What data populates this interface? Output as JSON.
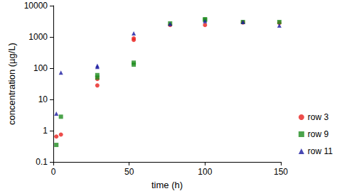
{
  "chart_data": {
    "type": "scatter",
    "x_label": "time (h)",
    "y_label": "concentration (µg/L)",
    "log": "y",
    "grid": false,
    "legend": "lower right",
    "xlim": [
      0,
      150
    ],
    "xticks": [
      0,
      50,
      100,
      150
    ],
    "ylim": [
      0.1,
      10000
    ],
    "yticks": [
      0.1,
      1,
      10,
      100,
      1000,
      10000
    ],
    "series": [
      {
        "name": "row 3",
        "color": "#e8201e",
        "marker": "circle",
        "x": [
          2,
          5,
          29,
          29,
          53,
          53,
          77,
          100,
          125,
          149
        ],
        "values": [
          0.65,
          0.75,
          28,
          45,
          800,
          900,
          2400,
          2400,
          2900,
          2800
        ]
      },
      {
        "name": "row 9",
        "color": "#1e8c1e",
        "marker": "square",
        "x": [
          2,
          5,
          29,
          29,
          53,
          53,
          77,
          100,
          100,
          125,
          149
        ],
        "values": [
          0.35,
          2.8,
          50,
          60,
          130,
          150,
          2700,
          3500,
          3700,
          3000,
          3000
        ]
      },
      {
        "name": "row 11",
        "color": "#1a1aa0",
        "marker": "triangle",
        "x": [
          2,
          5,
          29,
          29,
          53,
          77,
          100,
          125,
          149
        ],
        "values": [
          3.5,
          72,
          110,
          120,
          1300,
          2600,
          3200,
          3000,
          2300
        ]
      }
    ]
  }
}
